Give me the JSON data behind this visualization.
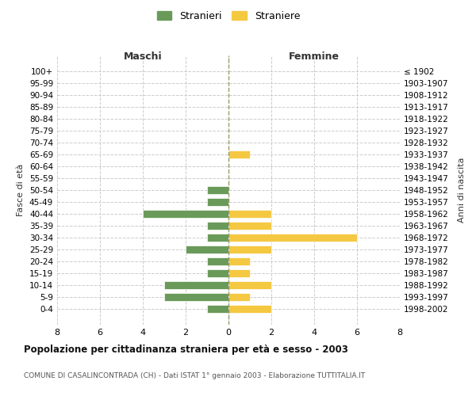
{
  "age_groups": [
    "100+",
    "95-99",
    "90-94",
    "85-89",
    "80-84",
    "75-79",
    "70-74",
    "65-69",
    "60-64",
    "55-59",
    "50-54",
    "45-49",
    "40-44",
    "35-39",
    "30-34",
    "25-29",
    "20-24",
    "15-19",
    "10-14",
    "5-9",
    "0-4"
  ],
  "birth_years": [
    "≤ 1902",
    "1903-1907",
    "1908-1912",
    "1913-1917",
    "1918-1922",
    "1923-1927",
    "1928-1932",
    "1933-1937",
    "1938-1942",
    "1943-1947",
    "1948-1952",
    "1953-1957",
    "1958-1962",
    "1963-1967",
    "1968-1972",
    "1973-1977",
    "1978-1982",
    "1983-1987",
    "1988-1992",
    "1993-1997",
    "1998-2002"
  ],
  "maschi": [
    0,
    0,
    0,
    0,
    0,
    0,
    0,
    0,
    0,
    0,
    1,
    1,
    4,
    1,
    1,
    2,
    1,
    1,
    3,
    3,
    1
  ],
  "femmine": [
    0,
    0,
    0,
    0,
    0,
    0,
    0,
    1,
    0,
    0,
    0,
    0,
    2,
    2,
    6,
    2,
    1,
    1,
    2,
    1,
    2
  ],
  "color_maschi": "#6a9a5a",
  "color_femmine": "#f5c842",
  "title": "Popolazione per cittadinanza straniera per età e sesso - 2003",
  "subtitle": "COMUNE DI CASALINCONTRADA (CH) - Dati ISTAT 1° gennaio 2003 - Elaborazione TUTTITALIA.IT",
  "xlabel_left": "Maschi",
  "xlabel_right": "Femmine",
  "ylabel_left": "Fasce di età",
  "ylabel_right": "Anni di nascita",
  "legend_maschi": "Stranieri",
  "legend_femmine": "Straniere",
  "xlim": 8,
  "background_color": "#ffffff",
  "grid_color": "#cccccc"
}
